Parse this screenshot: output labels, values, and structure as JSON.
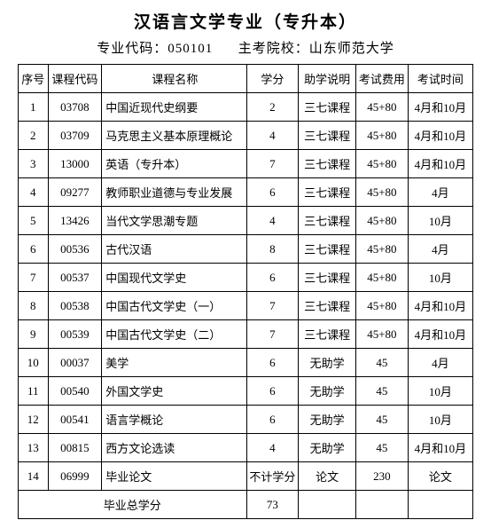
{
  "header": {
    "title": "汉语言文学专业（专升本）",
    "major_code_label": "专业代码：",
    "major_code": "050101",
    "school_label": "主考院校：",
    "school": "山东师范大学"
  },
  "columns": {
    "seq": "序号",
    "code": "课程代码",
    "name": "课程名称",
    "credit": "学分",
    "assist": "助学说明",
    "fee": "考试费用",
    "time": "考试时间"
  },
  "rows": [
    {
      "seq": "1",
      "code": "03708",
      "name": "中国近现代史纲要",
      "credit": "2",
      "assist": "三七课程",
      "fee": "45+80",
      "time": "4月和10月"
    },
    {
      "seq": "2",
      "code": "03709",
      "name": "马克思主义基本原理概论",
      "credit": "4",
      "assist": "三七课程",
      "fee": "45+80",
      "time": "4月和10月"
    },
    {
      "seq": "3",
      "code": "13000",
      "name": "英语（专升本）",
      "credit": "7",
      "assist": "三七课程",
      "fee": "45+80",
      "time": "4月和10月"
    },
    {
      "seq": "4",
      "code": "09277",
      "name": "教师职业道德与专业发展",
      "credit": "6",
      "assist": "三七课程",
      "fee": "45+80",
      "time": "4月"
    },
    {
      "seq": "5",
      "code": "13426",
      "name": "当代文学思潮专题",
      "credit": "4",
      "assist": "三七课程",
      "fee": "45+80",
      "time": "10月"
    },
    {
      "seq": "6",
      "code": "00536",
      "name": "古代汉语",
      "credit": "8",
      "assist": "三七课程",
      "fee": "45+80",
      "time": "4月"
    },
    {
      "seq": "7",
      "code": "00537",
      "name": "中国现代文学史",
      "credit": "6",
      "assist": "三七课程",
      "fee": "45+80",
      "time": "10月"
    },
    {
      "seq": "8",
      "code": "00538",
      "name": "中国古代文学史（一）",
      "credit": "7",
      "assist": "三七课程",
      "fee": "45+80",
      "time": "4月和10月"
    },
    {
      "seq": "9",
      "code": "00539",
      "name": "中国古代文学史（二）",
      "credit": "7",
      "assist": "三七课程",
      "fee": "45+80",
      "time": "4月和10月"
    },
    {
      "seq": "10",
      "code": "00037",
      "name": "美学",
      "credit": "6",
      "assist": "无助学",
      "fee": "45",
      "time": "4月"
    },
    {
      "seq": "11",
      "code": "00540",
      "name": "外国文学史",
      "credit": "6",
      "assist": "无助学",
      "fee": "45",
      "time": "10月"
    },
    {
      "seq": "12",
      "code": "00541",
      "name": "语言学概论",
      "credit": "6",
      "assist": "无助学",
      "fee": "45",
      "time": "10月"
    },
    {
      "seq": "13",
      "code": "00815",
      "name": "西方文论选读",
      "credit": "4",
      "assist": "无助学",
      "fee": "45",
      "time": "4月和10月"
    },
    {
      "seq": "14",
      "code": "06999",
      "name": "毕业论文",
      "credit": "不计学分",
      "assist": "论文",
      "fee": "230",
      "time": "论文"
    }
  ],
  "footer": {
    "label": "毕业总学分",
    "total": "73"
  }
}
